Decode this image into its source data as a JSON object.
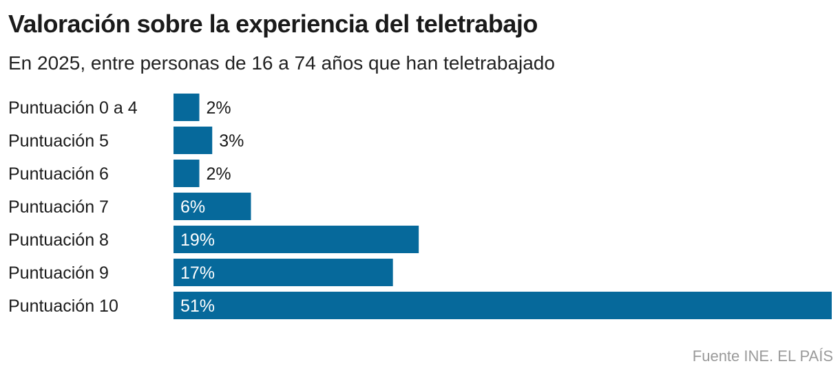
{
  "chart_data": {
    "type": "bar",
    "orientation": "horizontal",
    "title": "Valoración sobre la experiencia del teletrabajo",
    "subtitle": "En 2025, entre personas de 16 a 74 años que han teletrabajado",
    "categories": [
      "Puntuación 0 a 4",
      "Puntuación 5",
      "Puntuación 6",
      "Puntuación 7",
      "Puntuación 8",
      "Puntuación 9",
      "Puntuación 10"
    ],
    "values": [
      2,
      3,
      2,
      6,
      19,
      17,
      51
    ],
    "data_labels": [
      "2%",
      "3%",
      "2%",
      "6%",
      "19%",
      "17%",
      "51%"
    ],
    "unit": "%",
    "xlim": [
      0,
      51
    ],
    "grid": false,
    "bar_color": "#06699b"
  },
  "source": "Fuente INE. EL PAÍS"
}
